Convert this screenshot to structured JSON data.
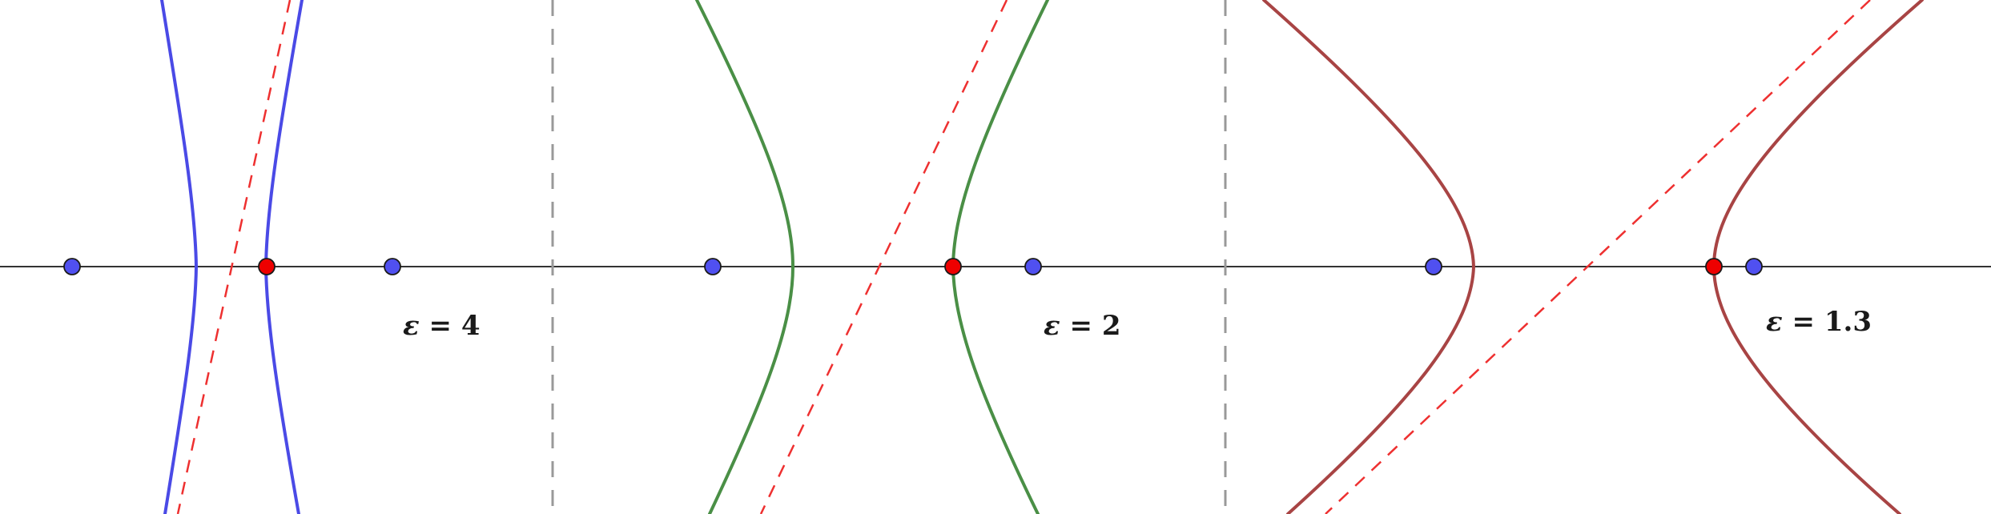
{
  "figure": {
    "colors": {
      "background": "#ffffff",
      "axis": "#333333",
      "separator": "#999999",
      "focus": "#5050f0",
      "vertex": "#ee0000",
      "asymptote": "#ee3030"
    },
    "panels": [
      {
        "id": "eps-4",
        "label_symbol": "ε",
        "label_rest": " = 4",
        "eccentricity": 4,
        "curve_color": "#4a4ae6"
      },
      {
        "id": "eps-2",
        "label_symbol": "ε",
        "label_rest": " = 2",
        "eccentricity": 2,
        "curve_color": "#4a8f46"
      },
      {
        "id": "eps-1-3",
        "label_symbol": "ε",
        "label_rest": " = 1.3",
        "eccentricity": 1.3,
        "curve_color": "#a84444"
      }
    ]
  }
}
